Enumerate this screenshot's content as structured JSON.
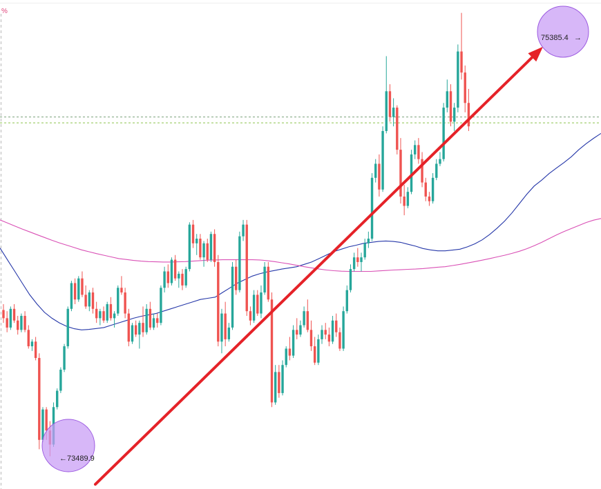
{
  "chart_data": {
    "type": "candlestick",
    "axis_unit_label": "%",
    "ylim": [
      73350,
      75440
    ],
    "reference_levels": [
      74940,
      74915
    ],
    "high_annotation": {
      "value": 75385.4,
      "label": "75385.4",
      "arrow": "→"
    },
    "low_annotation": {
      "value": 73489.9,
      "label": "73489.9",
      "arrow": "←"
    },
    "trend_arrow": {
      "from": 73370,
      "to": 75240
    },
    "candles": [
      [
        74115,
        74140,
        74060,
        74080
      ],
      [
        74080,
        74110,
        74020,
        74040
      ],
      [
        74040,
        74130,
        74030,
        74120
      ],
      [
        74120,
        74140,
        74060,
        74070
      ],
      [
        74070,
        74090,
        74010,
        74030
      ],
      [
        74030,
        74100,
        74020,
        74090
      ],
      [
        74090,
        74110,
        74020,
        74030
      ],
      [
        74030,
        74050,
        73950,
        73960
      ],
      [
        73960,
        73990,
        73940,
        73980
      ],
      [
        73980,
        74000,
        73900,
        73910
      ],
      [
        73910,
        73930,
        73520,
        73560
      ],
      [
        73560,
        73700,
        73550,
        73690
      ],
      [
        73690,
        73700,
        73560,
        73600
      ],
      [
        73600,
        73640,
        73490,
        73540
      ],
      [
        73540,
        73720,
        73530,
        73700
      ],
      [
        73700,
        73780,
        73690,
        73770
      ],
      [
        73770,
        73870,
        73760,
        73860
      ],
      [
        73860,
        73970,
        73850,
        73960
      ],
      [
        73960,
        74130,
        73950,
        74120
      ],
      [
        74120,
        74240,
        74110,
        74230
      ],
      [
        74230,
        74250,
        74140,
        74160
      ],
      [
        74160,
        74260,
        74150,
        74250
      ],
      [
        74250,
        74280,
        74170,
        74180
      ],
      [
        74180,
        74220,
        74120,
        74130
      ],
      [
        74130,
        74200,
        74110,
        74190
      ],
      [
        74190,
        74210,
        74100,
        74120
      ],
      [
        74120,
        74150,
        74060,
        74080
      ],
      [
        74080,
        74120,
        74050,
        74110
      ],
      [
        74110,
        74130,
        74060,
        74070
      ],
      [
        74070,
        74150,
        74060,
        74140
      ],
      [
        74140,
        74170,
        74070,
        74080
      ],
      [
        74080,
        74110,
        74040,
        74100
      ],
      [
        74100,
        74220,
        74090,
        74210
      ],
      [
        74210,
        74260,
        74180,
        74190
      ],
      [
        74190,
        74210,
        74080,
        74100
      ],
      [
        74100,
        74120,
        73960,
        73980
      ],
      [
        73980,
        74060,
        73970,
        74050
      ],
      [
        74050,
        74070,
        74000,
        74010
      ],
      [
        74010,
        74070,
        73950,
        74060
      ],
      [
        74060,
        74130,
        74000,
        74020
      ],
      [
        74020,
        74140,
        74010,
        74120
      ],
      [
        74120,
        74150,
        74030,
        74040
      ],
      [
        74040,
        74100,
        74030,
        74080
      ],
      [
        74080,
        74100,
        74040,
        74060
      ],
      [
        74060,
        74220,
        74050,
        74210
      ],
      [
        74210,
        74300,
        74190,
        74280
      ],
      [
        74280,
        74310,
        74210,
        74230
      ],
      [
        74230,
        74340,
        74220,
        74330
      ],
      [
        74330,
        74350,
        74240,
        74250
      ],
      [
        74250,
        74280,
        74210,
        74270
      ],
      [
        74270,
        74290,
        74200,
        74220
      ],
      [
        74220,
        74300,
        74210,
        74290
      ],
      [
        74290,
        74490,
        74280,
        74480
      ],
      [
        74480,
        74500,
        74380,
        74400
      ],
      [
        74400,
        74440,
        74350,
        74420
      ],
      [
        74420,
        74440,
        74330,
        74340
      ],
      [
        74340,
        74410,
        74300,
        74400
      ],
      [
        74400,
        74420,
        74320,
        74330
      ],
      [
        74330,
        74450,
        74320,
        74440
      ],
      [
        74440,
        74460,
        74300,
        74320
      ],
      [
        74320,
        74350,
        73960,
        73980
      ],
      [
        73980,
        74120,
        73930,
        74100
      ],
      [
        74100,
        74150,
        73960,
        73990
      ],
      [
        73990,
        74060,
        73980,
        74040
      ],
      [
        74040,
        74320,
        74030,
        74300
      ],
      [
        74300,
        74330,
        74180,
        74200
      ],
      [
        74200,
        74450,
        74190,
        74430
      ],
      [
        74430,
        74500,
        74410,
        74480
      ],
      [
        74480,
        74500,
        74090,
        74110
      ],
      [
        74110,
        74130,
        74050,
        74070
      ],
      [
        74070,
        74200,
        74060,
        74180
      ],
      [
        74180,
        74200,
        74090,
        74100
      ],
      [
        74100,
        74220,
        74080,
        74190
      ],
      [
        74190,
        74320,
        74180,
        74300
      ],
      [
        74300,
        74320,
        74150,
        74160
      ],
      [
        74160,
        74190,
        73700,
        73720
      ],
      [
        73720,
        73880,
        73710,
        73850
      ],
      [
        73850,
        73880,
        73740,
        73760
      ],
      [
        73760,
        73900,
        73750,
        73880
      ],
      [
        73880,
        73960,
        73870,
        73950
      ],
      [
        73950,
        74000,
        73900,
        73920
      ],
      [
        73920,
        74050,
        73910,
        74030
      ],
      [
        74030,
        74080,
        73990,
        74010
      ],
      [
        74010,
        74070,
        74000,
        74050
      ],
      [
        74050,
        74130,
        74040,
        74110
      ],
      [
        74110,
        74160,
        74020,
        74030
      ],
      [
        74030,
        74070,
        73940,
        73960
      ],
      [
        73960,
        74000,
        73880,
        73890
      ],
      [
        73890,
        74010,
        73880,
        73990
      ],
      [
        73990,
        74050,
        73970,
        74030
      ],
      [
        74030,
        74060,
        73990,
        74010
      ],
      [
        74010,
        74040,
        73960,
        73980
      ],
      [
        73980,
        74090,
        73970,
        74070
      ],
      [
        74070,
        74100,
        74000,
        74020
      ],
      [
        74020,
        74040,
        73940,
        73950
      ],
      [
        73950,
        74130,
        73940,
        74110
      ],
      [
        74110,
        74220,
        74100,
        74200
      ],
      [
        74200,
        74310,
        74190,
        74290
      ],
      [
        74290,
        74360,
        74280,
        74340
      ],
      [
        74340,
        74380,
        74300,
        74320
      ],
      [
        74320,
        74360,
        74280,
        74340
      ],
      [
        74340,
        74420,
        74330,
        74400
      ],
      [
        74400,
        74450,
        74380,
        74420
      ],
      [
        74420,
        74700,
        74410,
        74680
      ],
      [
        74680,
        74760,
        74660,
        74740
      ],
      [
        74740,
        74780,
        74600,
        74630
      ],
      [
        74630,
        74900,
        74620,
        74880
      ],
      [
        74880,
        75200,
        74870,
        75050
      ],
      [
        75050,
        75080,
        74920,
        74940
      ],
      [
        74940,
        75020,
        74900,
        74980
      ],
      [
        74980,
        74990,
        74780,
        74800
      ],
      [
        74800,
        74850,
        74570,
        74600
      ],
      [
        74600,
        74650,
        74520,
        74560
      ],
      [
        74560,
        74640,
        74550,
        74620
      ],
      [
        74620,
        74800,
        74610,
        74780
      ],
      [
        74780,
        74840,
        74760,
        74820
      ],
      [
        74820,
        74850,
        74740,
        74760
      ],
      [
        74760,
        74790,
        74640,
        74660
      ],
      [
        74660,
        74680,
        74580,
        74600
      ],
      [
        74600,
        74620,
        74560,
        74580
      ],
      [
        74580,
        74700,
        74570,
        74680
      ],
      [
        74680,
        74760,
        74670,
        74740
      ],
      [
        74740,
        74790,
        74730,
        74760
      ],
      [
        74760,
        75000,
        74750,
        74980
      ],
      [
        74980,
        75100,
        74960,
        75050
      ],
      [
        75050,
        75080,
        74900,
        74920
      ],
      [
        74920,
        75000,
        74880,
        74980
      ],
      [
        74980,
        75250,
        74960,
        75220
      ],
      [
        75220,
        75385,
        75100,
        75130
      ],
      [
        75130,
        75160,
        74960,
        75000
      ],
      [
        75000,
        75060,
        74880,
        74900
      ]
    ],
    "moving_averages": [
      {
        "color": "#2436a8",
        "values": [
          74380,
          74330,
          74280,
          74230,
          74180,
          74140,
          74105,
          74080,
          74060,
          74045,
          74035,
          74030,
          74032,
          74036,
          74040,
          74050,
          74060,
          74070,
          74080,
          74088,
          74094,
          74100,
          74110,
          74120,
          74130,
          74140,
          74150,
          74160,
          74165,
          74170,
          74190,
          74210,
          74230,
          74245,
          74260,
          74270,
          74278,
          74284,
          74290,
          74295,
          74300,
          74310,
          74320,
          74335,
          74350,
          74365,
          74375,
          74385,
          74392,
          74400,
          74404,
          74408,
          74410,
          74408,
          74404,
          74396,
          74388,
          74378,
          74372,
          74368,
          74368,
          74371,
          74375,
          74385,
          74398,
          74415,
          74438,
          74465,
          74495,
          74530,
          74570,
          74610,
          74645,
          74670,
          74698,
          74722,
          74745,
          74770,
          74800,
          74826,
          74849,
          74870
        ]
      },
      {
        "color": "#d94fb5",
        "values": [
          74500,
          74487,
          74474,
          74461,
          74449,
          74437,
          74425,
          74413,
          74402,
          74392,
          74382,
          74372,
          74364,
          74356,
          74349,
          74342,
          74335,
          74331,
          74327,
          74324,
          74322,
          74321,
          74320,
          74320,
          74321,
          74322,
          74324,
          74326,
          74328,
          74329,
          74330,
          74330,
          74330,
          74330,
          74330,
          74329,
          74326,
          74322,
          74317,
          74312,
          74306,
          74300,
          74295,
          74290,
          74286,
          74283,
          74281,
          74280,
          74280,
          74280,
          74280,
          74282,
          74284,
          74286,
          74287,
          74289,
          74290,
          74292,
          74295,
          74298,
          74300,
          74305,
          74310,
          74316,
          74322,
          74328,
          74335,
          74342,
          74349,
          74357,
          74366,
          74377,
          74390,
          74404,
          74420,
          74436,
          74450,
          74463,
          74476,
          74489,
          74499,
          74506
        ]
      }
    ],
    "colors": {
      "bull": "#26a69a",
      "bear": "#ef5350",
      "arrow": "#e52228",
      "highlight": "#c79bf5",
      "ref_line": "#4caf50"
    }
  }
}
